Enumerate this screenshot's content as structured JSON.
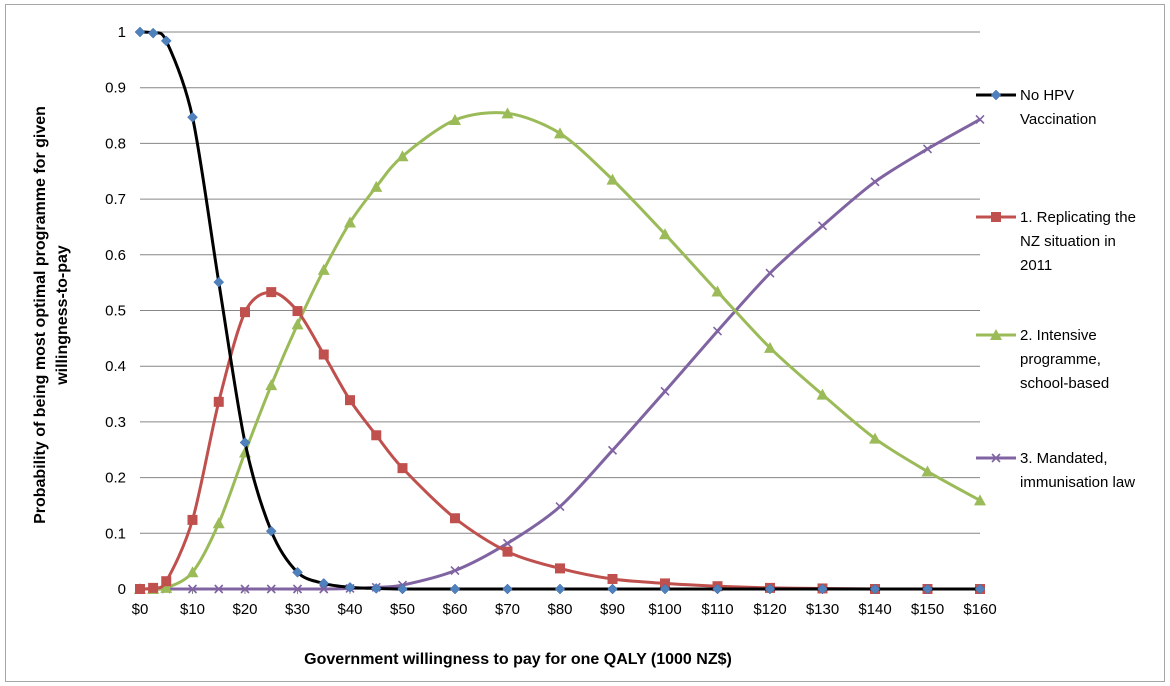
{
  "chart_data": {
    "type": "line",
    "xlabel": "Government willingness to pay for one QALY (1000 NZ$)",
    "ylabel_lines": [
      "Probability of being most optimal programme for given",
      "willingness-to-pay"
    ],
    "x_tick_labels": [
      "$0",
      "$10",
      "$20",
      "$30",
      "$40",
      "$50",
      "$60",
      "$70",
      "$80",
      "$90",
      "$100",
      "$110",
      "$120",
      "$130",
      "$140",
      "$150",
      "$160"
    ],
    "x_tick_values": [
      0,
      10,
      20,
      30,
      40,
      50,
      60,
      70,
      80,
      90,
      100,
      110,
      120,
      130,
      140,
      150,
      160
    ],
    "y_tick_labels": [
      "0",
      "0.1",
      "0.2",
      "0.3",
      "0.4",
      "0.5",
      "0.6",
      "0.7",
      "0.8",
      "0.9",
      "1"
    ],
    "xlim": [
      0,
      160
    ],
    "ylim": [
      0,
      1
    ],
    "grid": "horizontal",
    "legend_position": "right",
    "series": [
      {
        "name_lines": [
          "No HPV",
          "Vaccination"
        ],
        "color": "#000000",
        "marker": "diamond",
        "marker_color": "#4f81bd",
        "points": [
          [
            0,
            1.0
          ],
          [
            2.5,
            0.998
          ],
          [
            5,
            0.984
          ],
          [
            10,
            0.847
          ],
          [
            15,
            0.551
          ],
          [
            20,
            0.263
          ],
          [
            25,
            0.104
          ],
          [
            30,
            0.03
          ],
          [
            35,
            0.01
          ],
          [
            40,
            0.003
          ],
          [
            45,
            0.001
          ],
          [
            50,
            0.0
          ],
          [
            60,
            0.0
          ],
          [
            70,
            0.0
          ],
          [
            80,
            0.0
          ],
          [
            90,
            0.0
          ],
          [
            100,
            0.0
          ],
          [
            110,
            0.0
          ],
          [
            120,
            0.0
          ],
          [
            130,
            0.0
          ],
          [
            140,
            0.0
          ],
          [
            150,
            0.0
          ],
          [
            160,
            0.0
          ]
        ]
      },
      {
        "name_lines": [
          "1. Replicating the",
          "NZ situation in",
          "2011"
        ],
        "color": "#c0504d",
        "marker": "square",
        "marker_color": "#c0504d",
        "points": [
          [
            0,
            0.0
          ],
          [
            2.5,
            0.002
          ],
          [
            5,
            0.014
          ],
          [
            10,
            0.124
          ],
          [
            15,
            0.336
          ],
          [
            20,
            0.497
          ],
          [
            25,
            0.533
          ],
          [
            30,
            0.499
          ],
          [
            35,
            0.421
          ],
          [
            40,
            0.339
          ],
          [
            45,
            0.276
          ],
          [
            50,
            0.217
          ],
          [
            60,
            0.127
          ],
          [
            70,
            0.067
          ],
          [
            80,
            0.037
          ],
          [
            90,
            0.018
          ],
          [
            100,
            0.01
          ],
          [
            110,
            0.005
          ],
          [
            120,
            0.002
          ],
          [
            130,
            0.001
          ],
          [
            140,
            0.0
          ],
          [
            150,
            0.0
          ],
          [
            160,
            0.0
          ]
        ]
      },
      {
        "name_lines": [
          "2. Intensive",
          "programme,",
          "school-based"
        ],
        "color": "#9bbb59",
        "marker": "triangle",
        "marker_color": "#9bbb59",
        "points": [
          [
            0,
            0.0
          ],
          [
            2.5,
            0.0
          ],
          [
            5,
            0.002
          ],
          [
            10,
            0.03
          ],
          [
            15,
            0.118
          ],
          [
            20,
            0.245
          ],
          [
            25,
            0.366
          ],
          [
            30,
            0.475
          ],
          [
            35,
            0.573
          ],
          [
            40,
            0.658
          ],
          [
            45,
            0.722
          ],
          [
            50,
            0.777
          ],
          [
            60,
            0.842
          ],
          [
            70,
            0.854
          ],
          [
            80,
            0.818
          ],
          [
            90,
            0.735
          ],
          [
            100,
            0.637
          ],
          [
            110,
            0.534
          ],
          [
            120,
            0.433
          ],
          [
            130,
            0.349
          ],
          [
            140,
            0.27
          ],
          [
            150,
            0.211
          ],
          [
            160,
            0.159
          ]
        ]
      },
      {
        "name_lines": [
          "3. Mandated,",
          "immunisation law"
        ],
        "color": "#8064a2",
        "marker": "x",
        "marker_color": "#8064a2",
        "points": [
          [
            0,
            0.0
          ],
          [
            2.5,
            0.0
          ],
          [
            5,
            0.0
          ],
          [
            10,
            0.0
          ],
          [
            15,
            0.0
          ],
          [
            20,
            0.0
          ],
          [
            25,
            0.0
          ],
          [
            30,
            0.0
          ],
          [
            35,
            0.0
          ],
          [
            40,
            0.001
          ],
          [
            45,
            0.003
          ],
          [
            50,
            0.007
          ],
          [
            60,
            0.033
          ],
          [
            70,
            0.082
          ],
          [
            80,
            0.148
          ],
          [
            90,
            0.249
          ],
          [
            100,
            0.355
          ],
          [
            110,
            0.463
          ],
          [
            120,
            0.567
          ],
          [
            130,
            0.652
          ],
          [
            140,
            0.731
          ],
          [
            150,
            0.79
          ],
          [
            160,
            0.843
          ]
        ]
      }
    ]
  }
}
